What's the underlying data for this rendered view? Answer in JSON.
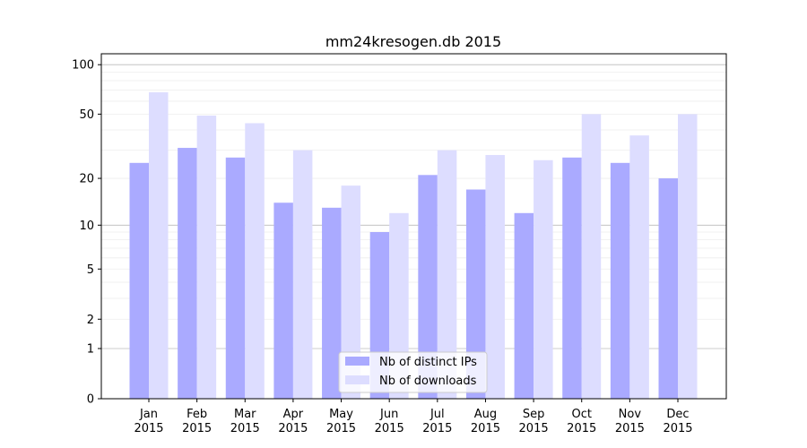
{
  "chart_data": {
    "type": "bar",
    "title": "mm24kresogen.db 2015",
    "xlabel": "",
    "ylabel": "",
    "yscale": "symlog",
    "ylim": [
      0,
      110
    ],
    "yticks": [
      0,
      1,
      2,
      5,
      10,
      20,
      50,
      100
    ],
    "grid": true,
    "legend_position": "bottom-center",
    "categories": [
      "Jan\n2015",
      "Feb\n2015",
      "Mar\n2015",
      "Apr\n2015",
      "May\n2015",
      "Jun\n2015",
      "Jul\n2015",
      "Aug\n2015",
      "Sep\n2015",
      "Oct\n2015",
      "Nov\n2015",
      "Dec\n2015"
    ],
    "series": [
      {
        "name": "Nb of distinct IPs",
        "color": "#aaaaff",
        "values": [
          25,
          31,
          27,
          14,
          13,
          9,
          21,
          17,
          12,
          27,
          25,
          20
        ]
      },
      {
        "name": "Nb of downloads",
        "color": "#ddddff",
        "values": [
          68,
          49,
          44,
          30,
          18,
          12,
          30,
          28,
          26,
          50,
          37,
          50
        ]
      }
    ]
  }
}
